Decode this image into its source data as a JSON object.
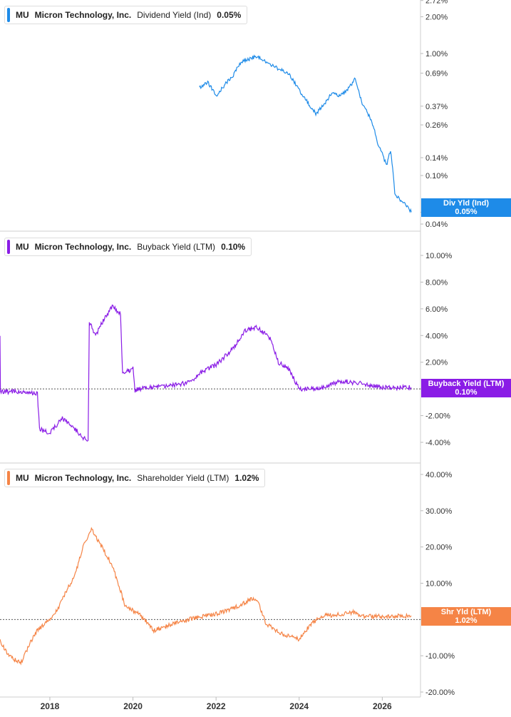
{
  "colors": {
    "dividend": "#1e8be8",
    "buyback": "#8a1ce6",
    "shareholder": "#f58446"
  },
  "panels": [
    {
      "ticker": "MU",
      "company": "Micron Technology, Inc.",
      "metric": "Dividend Yield (Ind)",
      "value": "0.05%",
      "tag_name": "Div Yld (Ind)",
      "tag_value": "0.05%"
    },
    {
      "ticker": "MU",
      "company": "Micron Technology, Inc.",
      "metric": "Buyback Yield (LTM)",
      "value": "0.10%",
      "tag_name": "Buyback Yield (LTM)",
      "tag_value": "0.10%"
    },
    {
      "ticker": "MU",
      "company": "Micron Technology, Inc.",
      "metric": "Shareholder Yield (LTM)",
      "value": "1.02%",
      "tag_name": "Shr Yld (LTM)",
      "tag_value": "1.02%"
    }
  ],
  "chart_data": [
    {
      "type": "line",
      "scale": "log",
      "grid": false,
      "name": "Dividend Yield (Ind)",
      "ylim": [
        0.04,
        2.72
      ],
      "yticks": [
        2.72,
        2.0,
        1.0,
        0.69,
        0.37,
        0.26,
        0.14,
        0.1,
        0.05,
        0.04
      ],
      "yticklabels": [
        "2.72%",
        "2.00%",
        "1.00%",
        "0.69%",
        "0.37%",
        "0.26%",
        "0.14%",
        "0.10%",
        "0.05%",
        "0.04%"
      ],
      "x": [
        2021.6,
        2021.8,
        2022.0,
        2022.2,
        2022.4,
        2022.6,
        2022.8,
        2023.0,
        2023.2,
        2023.4,
        2023.6,
        2023.8,
        2024.0,
        2024.2,
        2024.4,
        2024.6,
        2024.8,
        2025.0,
        2025.2,
        2025.35,
        2025.5,
        2025.7,
        2025.9,
        2026.1,
        2026.2,
        2026.3,
        2026.5,
        2026.7
      ],
      "y": [
        0.52,
        0.58,
        0.45,
        0.55,
        0.65,
        0.85,
        0.9,
        0.96,
        0.85,
        0.78,
        0.72,
        0.65,
        0.5,
        0.4,
        0.32,
        0.38,
        0.48,
        0.45,
        0.52,
        0.62,
        0.4,
        0.3,
        0.18,
        0.12,
        0.16,
        0.07,
        0.06,
        0.05
      ]
    },
    {
      "type": "line",
      "scale": "linear",
      "grid": false,
      "zero_line": true,
      "name": "Buyback Yield (LTM)",
      "ylim": [
        -5,
        11
      ],
      "yticks": [
        10,
        8,
        6,
        4,
        2,
        0,
        -2,
        -4
      ],
      "yticklabels": [
        "10.00%",
        "8.00%",
        "6.00%",
        "4.00%",
        "2.00%",
        "",
        "-2.00%",
        "-4.00%"
      ],
      "x": [
        2016.8,
        2016.81,
        2017.3,
        2017.7,
        2017.75,
        2018.0,
        2018.3,
        2018.6,
        2018.92,
        2018.95,
        2019.1,
        2019.3,
        2019.5,
        2019.7,
        2019.75,
        2020.0,
        2020.05,
        2020.3,
        2020.6,
        2021.0,
        2021.4,
        2021.6,
        2022.0,
        2022.4,
        2022.7,
        2023.0,
        2023.3,
        2023.5,
        2023.75,
        2024.0,
        2024.5,
        2025.0,
        2025.5,
        2026.0,
        2026.7
      ],
      "y": [
        4.1,
        -0.2,
        -0.2,
        -0.3,
        -3.0,
        -3.3,
        -2.2,
        -3.0,
        -4.0,
        5.0,
        4.0,
        5.2,
        6.2,
        5.6,
        1.2,
        1.5,
        -0.1,
        0.1,
        0.2,
        0.3,
        0.5,
        1.2,
        1.8,
        3.0,
        4.4,
        4.6,
        3.8,
        2.0,
        1.5,
        0.0,
        0.0,
        0.6,
        0.4,
        0.1,
        0.1
      ]
    },
    {
      "type": "line",
      "scale": "linear",
      "grid": false,
      "zero_line": true,
      "name": "Shareholder Yield (LTM)",
      "ylim": [
        -20,
        41
      ],
      "yticks": [
        40,
        30,
        20,
        10,
        0,
        -10,
        -20
      ],
      "yticklabels": [
        "40.00%",
        "30.00%",
        "20.00%",
        "10.00%",
        "",
        "-10.00%",
        "-20.00%"
      ],
      "xticks": [
        2018,
        2020,
        2022,
        2024,
        2026
      ],
      "xticklabels": [
        "2018",
        "2020",
        "2022",
        "2024",
        "2026"
      ],
      "x": [
        2016.8,
        2017.0,
        2017.3,
        2017.5,
        2017.7,
        2018.0,
        2018.2,
        2018.4,
        2018.6,
        2018.8,
        2019.0,
        2019.2,
        2019.5,
        2019.7,
        2019.8,
        2020.2,
        2020.5,
        2021.0,
        2021.5,
        2022.0,
        2022.5,
        2022.9,
        2023.0,
        2023.2,
        2023.5,
        2024.0,
        2024.3,
        2024.6,
        2025.0,
        2025.3,
        2025.6,
        2026.0,
        2026.7
      ],
      "y": [
        -6.0,
        -10.0,
        -12.0,
        -7.0,
        -3.0,
        0.0,
        3.0,
        8.0,
        12.0,
        20.0,
        25.0,
        21.0,
        15.0,
        8.0,
        4.0,
        1.0,
        -3.0,
        -1.0,
        0.5,
        1.5,
        3.5,
        6.0,
        5.0,
        -1.0,
        -3.5,
        -5.5,
        -1.0,
        1.0,
        1.5,
        2.0,
        0.8,
        0.9,
        1.0
      ]
    }
  ]
}
